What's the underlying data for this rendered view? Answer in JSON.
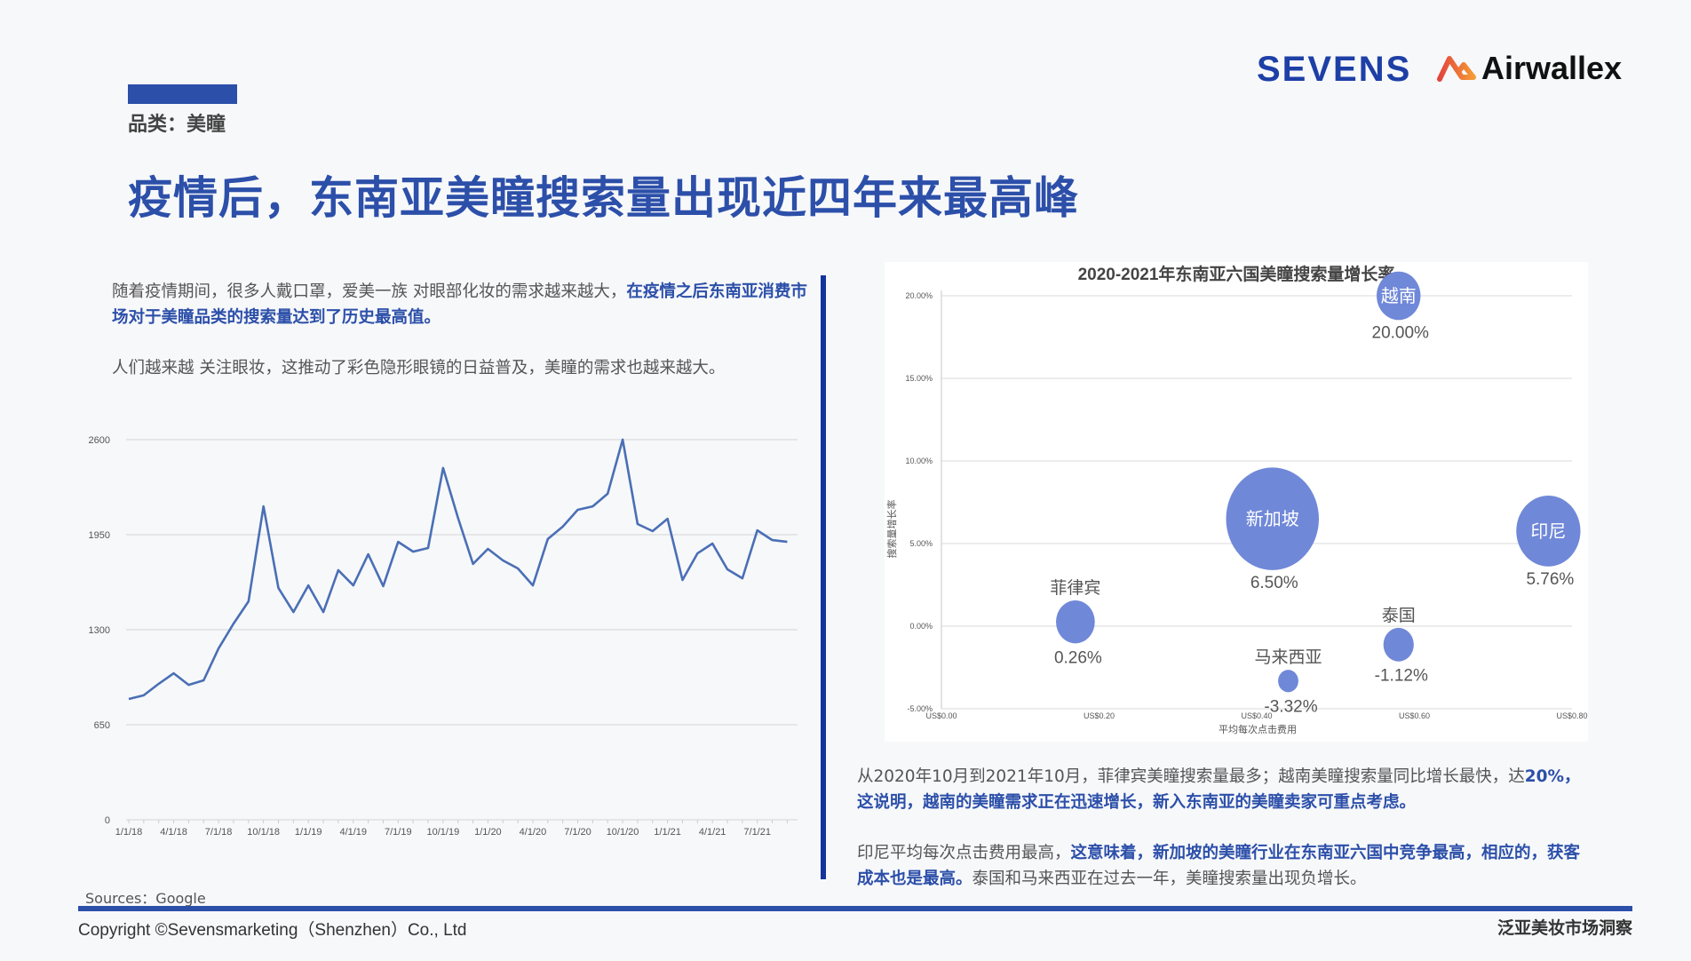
{
  "header": {
    "category": "品类：美瞳",
    "title": "疫情后，东南亚美瞳搜索量出现近四年来最高峰",
    "logos": {
      "sevens": "SEVENS",
      "airwallex": "Airwallex"
    }
  },
  "left_text": {
    "p1_normal": "随着疫情期间，很多人戴口罩，爱美一族 对眼部化妆的需求越来越大，",
    "p1_highlight": "在疫情之后东南亚消费市场对于美瞳品类的搜索量达到了历史最高值。",
    "p2": "人们越来越 关注眼妆，这推动了彩色隐形眼镜的日益普及，美瞳的需求也越来越大。"
  },
  "right_text": {
    "p3_normal": "从2020年10月到2021年10月，菲律宾美瞳搜索量最多；越南美瞳搜索量同比增长最快，达",
    "p3_highlight": "20%，这说明，越南的美瞳需求正在迅速增长，新入东南亚的美瞳卖家可重点考虑。",
    "p4_normal": "印尼平均每次点击费用最高，",
    "p4_highlight": "这意味着，新加坡的美瞳行业在东南亚六国中竞争最高，相应的，获客成本也是最高。",
    "p4_tail": "泰国和马来西亚在过去一年，美瞳搜索量出现负增长。"
  },
  "footer": {
    "sources": "Sources：Google",
    "copyright": "Copyright ©Sevensmarketing（Shenzhen）Co., Ltd",
    "right": "泛亚美妆市场洞察"
  },
  "colors": {
    "accent": "#2c4fa9",
    "divider": "#14349d",
    "line": "#4a6fb5",
    "bubble": "#7088d8",
    "background": "#f7f8fa"
  },
  "chart_data": [
    {
      "type": "line",
      "title": "",
      "xlabel": "",
      "ylabel": "",
      "ylim": [
        0,
        2600
      ],
      "yticks": [
        0,
        650,
        1300,
        1950,
        2600
      ],
      "grid": true,
      "x_tick_labels": [
        "1/1/18",
        "4/1/18",
        "7/1/18",
        "10/1/18",
        "1/1/19",
        "4/1/19",
        "7/1/19",
        "10/1/19",
        "1/1/20",
        "4/1/20",
        "7/1/20",
        "10/1/20",
        "1/1/21",
        "4/1/21",
        "7/1/21"
      ],
      "x": [
        "1/1/18",
        "2/1/18",
        "3/1/18",
        "4/1/18",
        "5/1/18",
        "6/1/18",
        "7/1/18",
        "8/1/18",
        "9/1/18",
        "10/1/18",
        "11/1/18",
        "12/1/18",
        "1/1/19",
        "2/1/19",
        "3/1/19",
        "4/1/19",
        "5/1/19",
        "6/1/19",
        "7/1/19",
        "8/1/19",
        "9/1/19",
        "10/1/19",
        "11/1/19",
        "12/1/19",
        "1/1/20",
        "2/1/20",
        "3/1/20",
        "4/1/20",
        "5/1/20",
        "6/1/20",
        "7/1/20",
        "8/1/20",
        "9/1/20",
        "10/1/20",
        "11/1/20",
        "12/1/20",
        "1/1/21",
        "2/1/21",
        "3/1/21",
        "4/1/21",
        "5/1/21",
        "6/1/21",
        "7/1/21",
        "8/1/21",
        "9/1/21"
      ],
      "series": [
        {
          "name": "美瞳搜索量",
          "values": [
            826,
            851,
            930,
            1002,
            923,
            954,
            1172,
            1342,
            1494,
            2144,
            1585,
            1421,
            1603,
            1421,
            1707,
            1603,
            1816,
            1598,
            1901,
            1834,
            1859,
            2406,
            2065,
            1750,
            1853,
            1774,
            1719,
            1603,
            1920,
            2005,
            2120,
            2144,
            2230,
            2600,
            2023,
            1974,
            2059,
            1640,
            1822,
            1889,
            1713,
            1652,
            1980,
            1913,
            1901
          ]
        }
      ]
    },
    {
      "type": "scatter",
      "subtype": "bubble",
      "title": "2020-2021年东南亚六国美瞳搜索量增长率",
      "xlabel": "平均每次点击费用",
      "ylabel": "搜索量增长率",
      "xlim": [
        0,
        0.8
      ],
      "ylim": [
        -5,
        20
      ],
      "x_tick_labels": [
        "US$0.00",
        "US$0.20",
        "US$0.40",
        "US$0.60",
        "US$0.80"
      ],
      "y_tick_labels": [
        "-5.00%",
        "0.00%",
        "5.00%",
        "10.00%",
        "15.00%",
        "20.00%"
      ],
      "grid": true,
      "points": [
        {
          "name": "越南",
          "x": 0.58,
          "y": 20.0,
          "label": "20.00%",
          "size": 26
        },
        {
          "name": "新加坡",
          "x": 0.42,
          "y": 6.5,
          "label": "6.50%",
          "size": 55
        },
        {
          "name": "印尼",
          "x": 0.77,
          "y": 5.76,
          "label": "5.76%",
          "size": 38
        },
        {
          "name": "菲律宾",
          "x": 0.17,
          "y": 0.26,
          "label": "0.26%",
          "size": 23
        },
        {
          "name": "泰国",
          "x": 0.58,
          "y": -1.12,
          "label": "-1.12%",
          "size": 18
        },
        {
          "name": "马来西亚",
          "x": 0.44,
          "y": -3.32,
          "label": "-3.32%",
          "size": 12
        }
      ]
    }
  ]
}
